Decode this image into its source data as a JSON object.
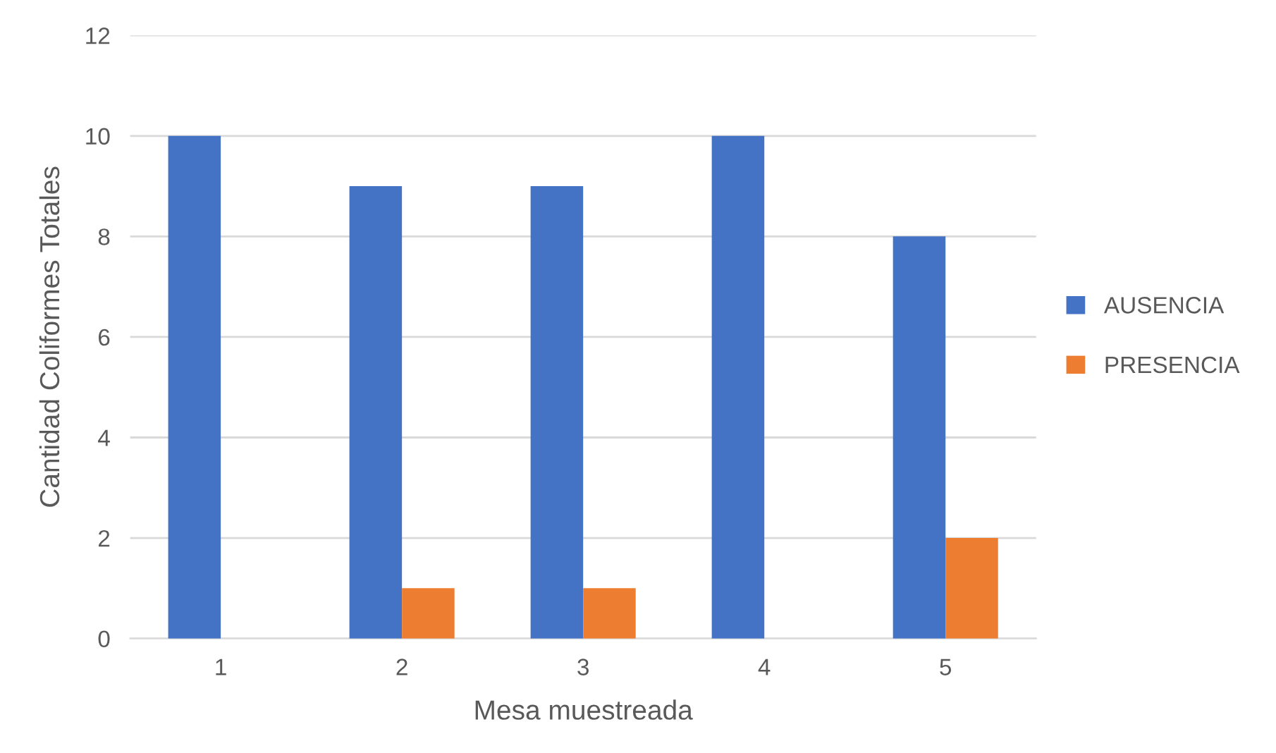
{
  "chart_data": {
    "type": "bar",
    "xlabel": "Mesa muestreada",
    "ylabel": "Cantidad Coliformes Totales",
    "categories": [
      "1",
      "2",
      "3",
      "4",
      "5"
    ],
    "series": [
      {
        "name": "AUSENCIA",
        "color": "#4472c4",
        "values": [
          10,
          9,
          9,
          10,
          8
        ]
      },
      {
        "name": "PRESENCIA",
        "color": "#ed7d31",
        "values": [
          0,
          1,
          1,
          0,
          2
        ]
      }
    ],
    "ylim": [
      0,
      12
    ],
    "yticks": [
      0,
      2,
      4,
      6,
      8,
      10,
      12
    ],
    "grid": "y",
    "legend": "right"
  }
}
